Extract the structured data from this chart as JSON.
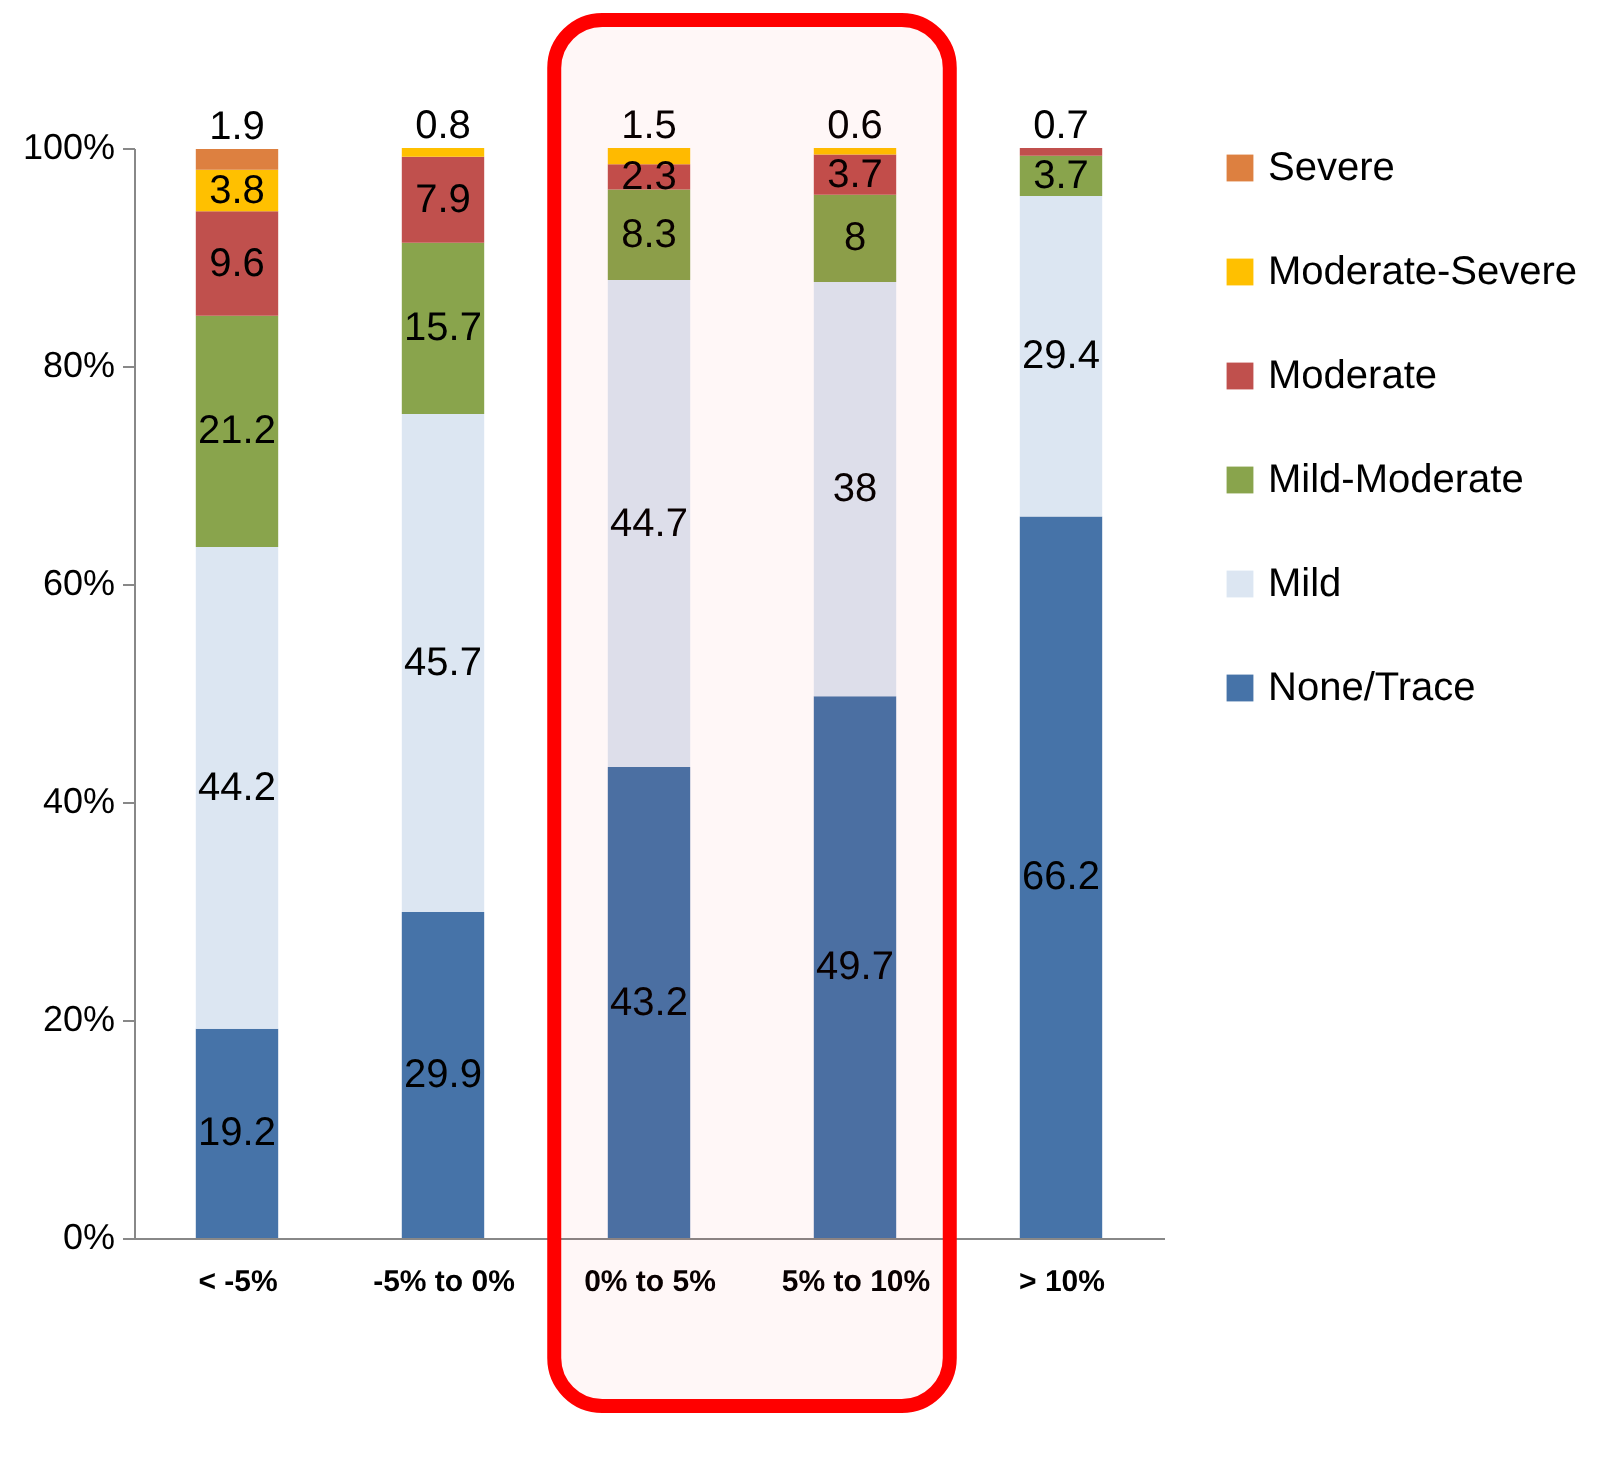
{
  "chart_data": {
    "type": "bar",
    "stacked": true,
    "categories": [
      "< -5%",
      "-5% to 0%",
      "0% to 5%",
      "5% to 10%",
      "> 10%"
    ],
    "series": [
      {
        "name": "None/Trace",
        "color": "#4673a8",
        "values": [
          19.2,
          29.9,
          43.2,
          49.7,
          66.2
        ]
      },
      {
        "name": "Mild",
        "color": "#dce6f2",
        "values": [
          44.2,
          45.7,
          44.7,
          38,
          29.4
        ]
      },
      {
        "name": "Mild-Moderate",
        "color": "#89a44c",
        "values": [
          21.2,
          15.7,
          8.3,
          8,
          3.7
        ]
      },
      {
        "name": "Moderate",
        "color": "#c0504d",
        "values": [
          9.6,
          7.9,
          2.3,
          3.7,
          0.7
        ]
      },
      {
        "name": "Moderate-Severe",
        "color": "#ffc000",
        "values": [
          3.8,
          0.8,
          1.5,
          0.6,
          null
        ]
      },
      {
        "name": "Severe",
        "color": "#dd8040",
        "values": [
          1.9,
          null,
          null,
          null,
          null
        ]
      }
    ],
    "ylim": [
      0,
      100
    ],
    "yticks": [
      {
        "value": 0,
        "label": "0%"
      },
      {
        "value": 20,
        "label": "20%"
      },
      {
        "value": 40,
        "label": "40%"
      },
      {
        "value": 60,
        "label": "60%"
      },
      {
        "value": 80,
        "label": "80%"
      },
      {
        "value": 100,
        "label": "100%"
      }
    ],
    "data_labels": true,
    "grid": false,
    "legend": "right",
    "bands": [
      {
        "axis": "x",
        "from": "0% to 5%",
        "to": "5% to 10%",
        "color": "#ff0000"
      }
    ]
  }
}
